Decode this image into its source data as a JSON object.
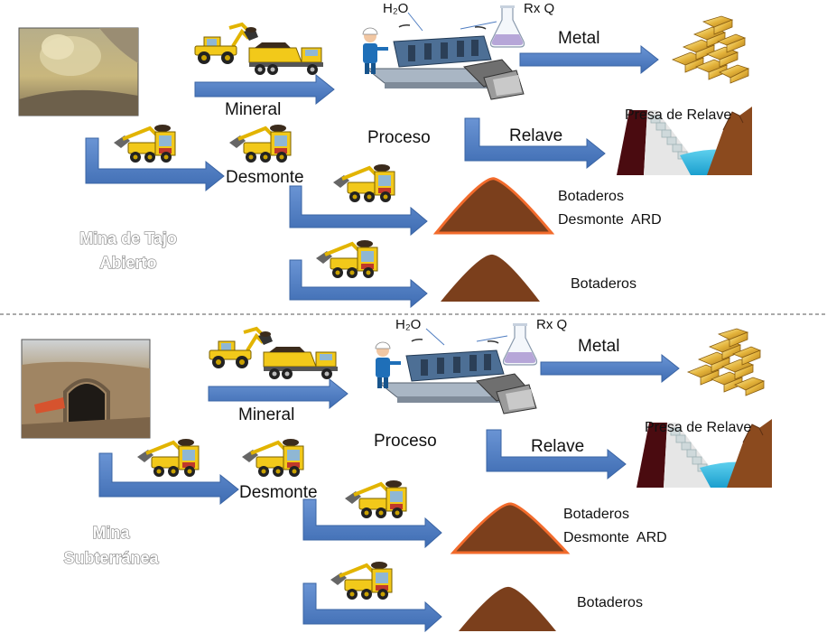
{
  "colors": {
    "arrow": "#4f7dc1",
    "arrow_edge": "#3a64a4",
    "pile": "#7b3f1c",
    "pile_outline": "#f26b2c",
    "divider": "#555555",
    "truck_yellow": "#f2c91a"
  },
  "icons": [
    "blast-photo-icon",
    "tunnel-photo-icon",
    "loader-icon",
    "dump-truck-icon",
    "scooptram-icon",
    "processing-plant-icon",
    "flask-icon",
    "gold-bars-icon",
    "tailings-dam-icon",
    "waste-pile-icon"
  ],
  "sections": [
    {
      "id": "open-pit",
      "mine_label_line1": "Mina de Tajo",
      "mine_label_line2": "Abierto",
      "ore": "Mineral",
      "waste": "Desmonte",
      "process": "Proceso",
      "water": "H₂O",
      "reagents": "Rx Q",
      "metal": "Metal",
      "tailings": "Relave",
      "tailings_dam": "Presa de Relave",
      "ard_dump_line1": "Botaderos",
      "ard_dump_line2": "Desmonte  ARD",
      "dump": "Botaderos"
    },
    {
      "id": "underground",
      "mine_label_line1": "Mina",
      "mine_label_line2": "Subterránea",
      "ore": "Mineral",
      "waste": "Desmonte",
      "process": "Proceso",
      "water": "H₂O",
      "reagents": "Rx Q",
      "metal": "Metal",
      "tailings": "Relave",
      "tailings_dam": "Presa de Relave",
      "ard_dump_line1": "Botaderos",
      "ard_dump_line2": "Desmonte  ARD",
      "dump": "Botaderos"
    }
  ]
}
